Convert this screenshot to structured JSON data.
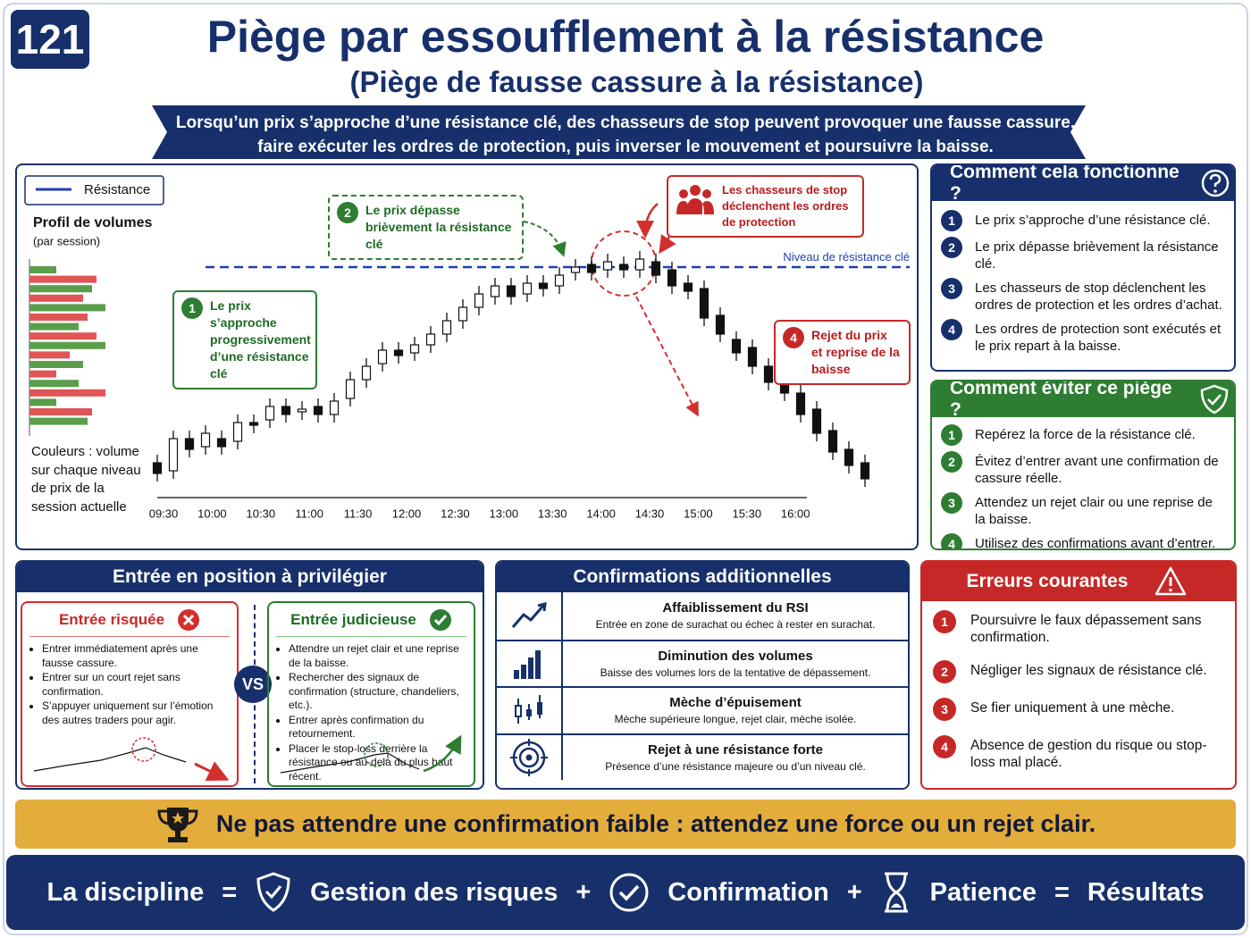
{
  "header": {
    "number": "121",
    "title": "Piège par essoufflement à la résistance",
    "subtitle": "(Piège de fausse cassure à la résistance)",
    "banner": [
      "Lorsqu’un prix s’approche d’une résistance clé, des chasseurs de stop peuvent provoquer une fausse cassure,",
      "faire exécuter les ordres de protection, puis inverser le mouvement et poursuivre la baisse."
    ]
  },
  "chart_data": {
    "type": "candlestick",
    "legend": "Résistance",
    "volume_title": "Profil de volumes",
    "volume_subtitle": "(par session)",
    "volume_note": "Couleurs : volume sur chaque niveau de prix de la session actuelle",
    "resistance_label": "Niveau de résistance clé",
    "resistance": 87,
    "ylim": [
      0,
      100
    ],
    "time_labels": [
      "09:30",
      "10:00",
      "10:30",
      "11:00",
      "11:30",
      "12:00",
      "12:30",
      "13:00",
      "13:30",
      "14:00",
      "14:30",
      "15:00",
      "15:30",
      "16:00"
    ],
    "open": [
      14,
      11,
      23,
      20,
      23,
      22,
      29,
      30,
      35,
      33,
      35,
      32,
      38,
      45,
      51,
      56,
      55,
      58,
      62,
      67,
      72,
      76,
      80,
      77,
      81,
      80,
      85,
      88,
      86,
      88,
      86,
      89,
      86,
      81,
      79,
      69,
      60,
      57,
      50,
      46,
      40,
      34,
      26,
      19,
      14
    ],
    "high": [
      17,
      26,
      26,
      28,
      26,
      32,
      32,
      38,
      38,
      37,
      38,
      40,
      48,
      53,
      59,
      59,
      61,
      65,
      70,
      75,
      80,
      83,
      83,
      84,
      84,
      87,
      90,
      91,
      92,
      91,
      93,
      92,
      89,
      84,
      82,
      72,
      63,
      60,
      53,
      49,
      43,
      37,
      29,
      22,
      17
    ],
    "low": [
      7,
      8,
      16,
      17,
      17,
      19,
      25,
      27,
      29,
      30,
      29,
      29,
      35,
      42,
      48,
      51,
      52,
      55,
      59,
      64,
      69,
      73,
      73,
      74,
      76,
      77,
      82,
      82,
      83,
      83,
      83,
      81,
      77,
      75,
      65,
      59,
      52,
      47,
      41,
      37,
      29,
      22,
      15,
      10,
      5
    ],
    "close": [
      10,
      23,
      19,
      25,
      20,
      29,
      28,
      35,
      32,
      34,
      32,
      37,
      45,
      50,
      56,
      54,
      58,
      62,
      67,
      72,
      77,
      80,
      76,
      81,
      79,
      84,
      87,
      85,
      89,
      86,
      90,
      84,
      80,
      78,
      68,
      62,
      55,
      50,
      44,
      40,
      32,
      25,
      18,
      13,
      8
    ],
    "up_color": "#ffffff",
    "down_color": "#111111",
    "volume_profile": {
      "values": [
        30,
        75,
        70,
        60,
        85,
        65,
        55,
        75,
        85,
        45,
        60,
        30,
        55,
        85,
        30,
        70,
        65
      ],
      "colors": [
        "#5a9e4b",
        "#e05555"
      ]
    },
    "annotations": [
      {
        "number": "1",
        "text": "Le prix s’approche progressivement d’une résistance clé"
      },
      {
        "number": "2",
        "text": "Le prix dépasse brièvement la résistance clé"
      },
      {
        "text": "Les chasseurs de stop déclenchent les ordres de protection"
      },
      {
        "number": "4",
        "text": "Rejet du prix et reprise de la baisse"
      }
    ]
  },
  "how": {
    "title": "Comment cela fonctionne ?",
    "steps": [
      {
        "number": "1",
        "text": "Le prix s’approche d’une résistance clé."
      },
      {
        "number": "2",
        "text": "Le prix dépasse brièvement la résistance clé."
      },
      {
        "number": "3",
        "text": "Les chasseurs de stop déclenchent les ordres de protection et les ordres d’achat."
      },
      {
        "number": "4",
        "text": "Les ordres de protection sont exécutés et le prix repart à la baisse."
      }
    ]
  },
  "avoid": {
    "title": "Comment éviter ce piège ?",
    "steps": [
      {
        "number": "1",
        "text": "Repérez la force de la résistance clé."
      },
      {
        "number": "2",
        "text": "Évitez d’entrer avant une confirmation de cassure réelle."
      },
      {
        "number": "3",
        "text": "Attendez un rejet clair ou une reprise de la baisse."
      },
      {
        "number": "4",
        "text": "Utilisez des confirmations avant d’entrer."
      }
    ]
  },
  "entry": {
    "title": "Entrée en position à privilégier",
    "vs": "VS",
    "risky": {
      "title": "Entrée risquée",
      "items": [
        "Entrer immédiatement après une fausse cassure.",
        "Entrer sur un court rejet sans confirmation.",
        "S’appuyer uniquement sur l’émotion des autres traders pour agir."
      ]
    },
    "wise": {
      "title": "Entrée judicieuse",
      "items": [
        "Attendre un rejet clair et une reprise de la baisse.",
        "Rechercher des signaux de confirmation (structure, chandeliers, etc.).",
        "Entrer après confirmation du retournement.",
        "Placer le stop-loss derrière la résistance ou au-delà du plus haut récent."
      ]
    }
  },
  "confirmations": {
    "title": "Confirmations additionnelles",
    "items": [
      {
        "title": "Affaiblissement du RSI",
        "text": "Entrée en zone de surachat ou échec à rester en surachat."
      },
      {
        "title": "Diminution des volumes",
        "text": "Baisse des volumes lors de la tentative de dépassement."
      },
      {
        "title": "Mèche d’épuisement",
        "text": "Mèche supérieure longue, rejet clair, mèche isolée."
      },
      {
        "title": "Rejet à une résistance forte",
        "text": "Présence d’une résistance majeure ou d’un niveau clé."
      }
    ]
  },
  "errors": {
    "title": "Erreurs courantes",
    "items": [
      {
        "number": "1",
        "text": "Poursuivre le faux dépassement sans confirmation."
      },
      {
        "number": "2",
        "text": "Négliger les signaux de résistance clé."
      },
      {
        "number": "3",
        "text": "Se fier uniquement à une mèche."
      },
      {
        "number": "4",
        "text": "Absence de gestion du risque ou stop-loss mal placé."
      }
    ]
  },
  "tip": "Ne pas attendre une confirmation faible : attendez une force ou un rejet clair.",
  "formula": [
    "La discipline",
    "=",
    "Gestion des risques",
    "+",
    "Confirmation",
    "+",
    "Patience",
    "=",
    "Résultats"
  ]
}
